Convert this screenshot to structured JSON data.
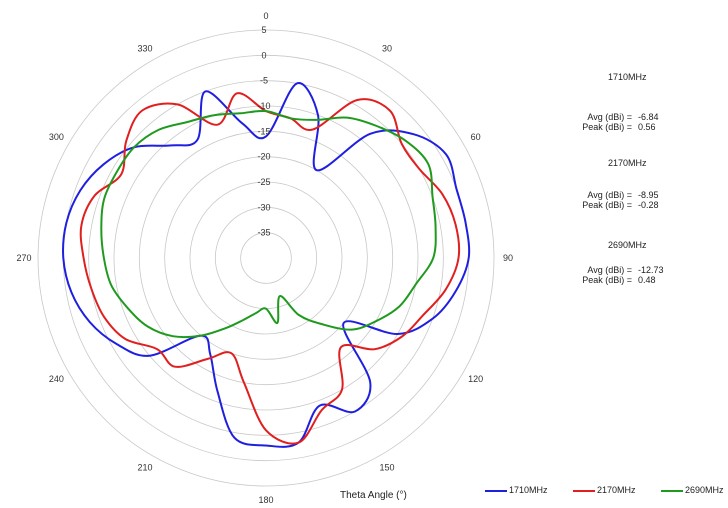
{
  "chart_data": {
    "type": "polar",
    "title": "",
    "xlabel": "Theta  Angle (°)",
    "angle_ticks": [
      "0",
      "30",
      "60",
      "90",
      "120",
      "150",
      "180",
      "210",
      "240",
      "270",
      "300",
      "330"
    ],
    "radial_ticks": [
      "5",
      "0",
      "-5",
      "-10",
      "-15",
      "-20",
      "-25",
      "-30",
      "-35"
    ],
    "rlim": [
      -40,
      5
    ],
    "angle_direction": "clockwise",
    "angle_zero": "top",
    "legend_position": "bottom-right",
    "series": [
      {
        "name": "1710MHz",
        "color": "#1f1fe0",
        "points": [
          [
            0,
            -16
          ],
          [
            10,
            -5
          ],
          [
            20,
            -10
          ],
          [
            30,
            -20
          ],
          [
            40,
            -8
          ],
          [
            50,
            -2
          ],
          [
            60,
            1
          ],
          [
            70,
            0
          ],
          [
            80,
            0
          ],
          [
            90,
            0
          ],
          [
            100,
            -2
          ],
          [
            110,
            -5
          ],
          [
            120,
            -10
          ],
          [
            130,
            -20
          ],
          [
            140,
            -8
          ],
          [
            150,
            -5
          ],
          [
            160,
            -9
          ],
          [
            170,
            -3
          ],
          [
            180,
            -3
          ],
          [
            190,
            -4
          ],
          [
            200,
            -12
          ],
          [
            210,
            -18
          ],
          [
            220,
            -20
          ],
          [
            230,
            -10
          ],
          [
            240,
            -6
          ],
          [
            250,
            -3
          ],
          [
            260,
            -1
          ],
          [
            270,
            0
          ],
          [
            280,
            0
          ],
          [
            290,
            -1
          ],
          [
            300,
            -3
          ],
          [
            310,
            -6
          ],
          [
            320,
            -11
          ],
          [
            330,
            -13
          ],
          [
            340,
            -5
          ],
          [
            350,
            -13
          ],
          [
            360,
            -16
          ]
        ]
      },
      {
        "name": "2170MHz",
        "color": "#e01f1f",
        "points": [
          [
            0,
            -11
          ],
          [
            10,
            -12
          ],
          [
            20,
            -13
          ],
          [
            30,
            -4
          ],
          [
            40,
            -2
          ],
          [
            50,
            -5
          ],
          [
            60,
            -5
          ],
          [
            70,
            -3
          ],
          [
            80,
            -2
          ],
          [
            90,
            -2
          ],
          [
            100,
            -4
          ],
          [
            110,
            -7
          ],
          [
            120,
            -9
          ],
          [
            130,
            -12
          ],
          [
            140,
            -17
          ],
          [
            150,
            -10
          ],
          [
            160,
            -8
          ],
          [
            170,
            -3
          ],
          [
            180,
            -6
          ],
          [
            190,
            -15
          ],
          [
            200,
            -20
          ],
          [
            210,
            -17
          ],
          [
            220,
            -12
          ],
          [
            230,
            -12
          ],
          [
            240,
            -8
          ],
          [
            250,
            -6
          ],
          [
            260,
            -5
          ],
          [
            270,
            -4
          ],
          [
            280,
            -3
          ],
          [
            290,
            -4
          ],
          [
            300,
            -7
          ],
          [
            310,
            -4
          ],
          [
            320,
            -2
          ],
          [
            330,
            -5
          ],
          [
            340,
            -12
          ],
          [
            350,
            -7
          ],
          [
            360,
            -11
          ]
        ]
      },
      {
        "name": "2690MHz",
        "color": "#1f9a1f",
        "points": [
          [
            0,
            -11
          ],
          [
            10,
            -12
          ],
          [
            20,
            -11
          ],
          [
            30,
            -8
          ],
          [
            40,
            -6
          ],
          [
            50,
            -4
          ],
          [
            60,
            -3
          ],
          [
            70,
            -5
          ],
          [
            80,
            -6
          ],
          [
            90,
            -7
          ],
          [
            100,
            -10
          ],
          [
            110,
            -12
          ],
          [
            120,
            -15
          ],
          [
            130,
            -18
          ],
          [
            140,
            -23
          ],
          [
            150,
            -27
          ],
          [
            160,
            -32
          ],
          [
            170,
            -27
          ],
          [
            180,
            -30
          ],
          [
            190,
            -29
          ],
          [
            200,
            -27
          ],
          [
            210,
            -24
          ],
          [
            220,
            -20
          ],
          [
            230,
            -16
          ],
          [
            240,
            -13
          ],
          [
            250,
            -11
          ],
          [
            260,
            -9
          ],
          [
            270,
            -8
          ],
          [
            280,
            -7
          ],
          [
            290,
            -6
          ],
          [
            300,
            -6
          ],
          [
            310,
            -6
          ],
          [
            320,
            -7
          ],
          [
            330,
            -9
          ],
          [
            340,
            -10
          ],
          [
            350,
            -11
          ],
          [
            360,
            -11
          ]
        ]
      }
    ],
    "stats": [
      {
        "freq": "1710MHz",
        "avg_label": "Avg (dBi) =",
        "avg": "-6.84",
        "peak_label": "Peak (dBi) =",
        "peak": "0.56"
      },
      {
        "freq": "2170MHz",
        "avg_label": "Avg (dBi) =",
        "avg": "-8.95",
        "peak_label": "Peak (dBi) =",
        "peak": "-0.28"
      },
      {
        "freq": "2690MHz",
        "avg_label": "Avg (dBi) =",
        "avg": "-12.73",
        "peak_label": "Peak (dBi) =",
        "peak": "0.48"
      }
    ]
  }
}
